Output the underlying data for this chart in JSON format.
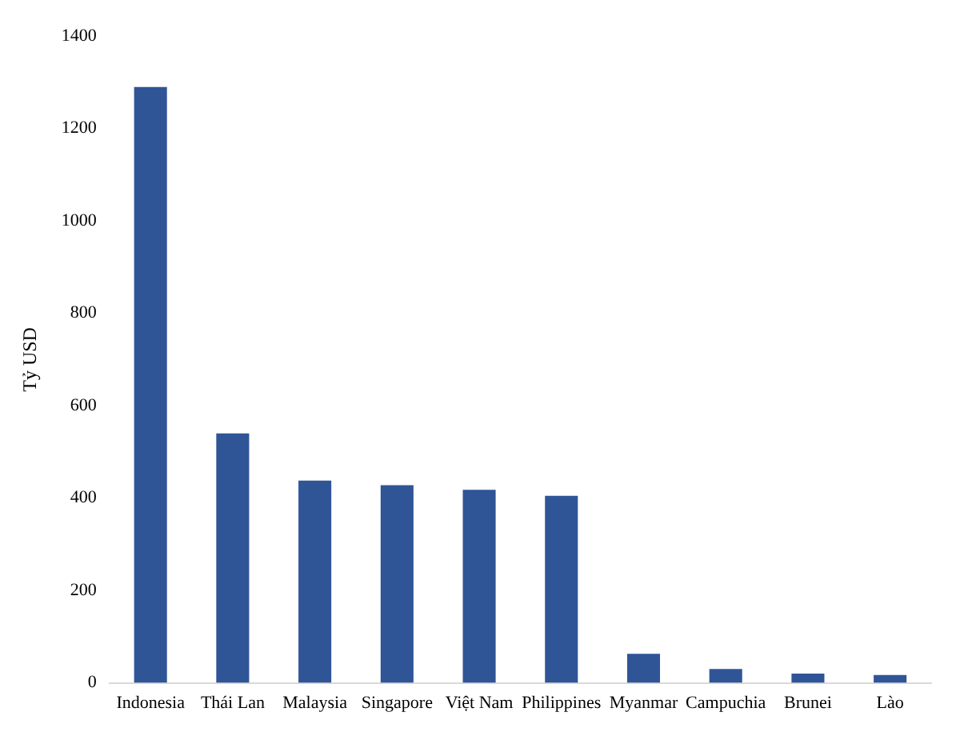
{
  "chart_data": {
    "type": "bar",
    "ylabel": "Tỷ USD",
    "categories": [
      "Indonesia",
      "Thái Lan",
      "Malaysia",
      "Singapore",
      "Việt Nam",
      "Philippines",
      "Myanmar",
      "Campuchia",
      "Brunei",
      "Lào"
    ],
    "values": [
      1290,
      540,
      438,
      428,
      418,
      405,
      63,
      30,
      20,
      17
    ],
    "color": "#2f5597",
    "ylim": [
      0,
      1400
    ],
    "yticks": [
      0,
      200,
      400,
      600,
      800,
      1000,
      1200,
      1400
    ],
    "grid": false
  }
}
